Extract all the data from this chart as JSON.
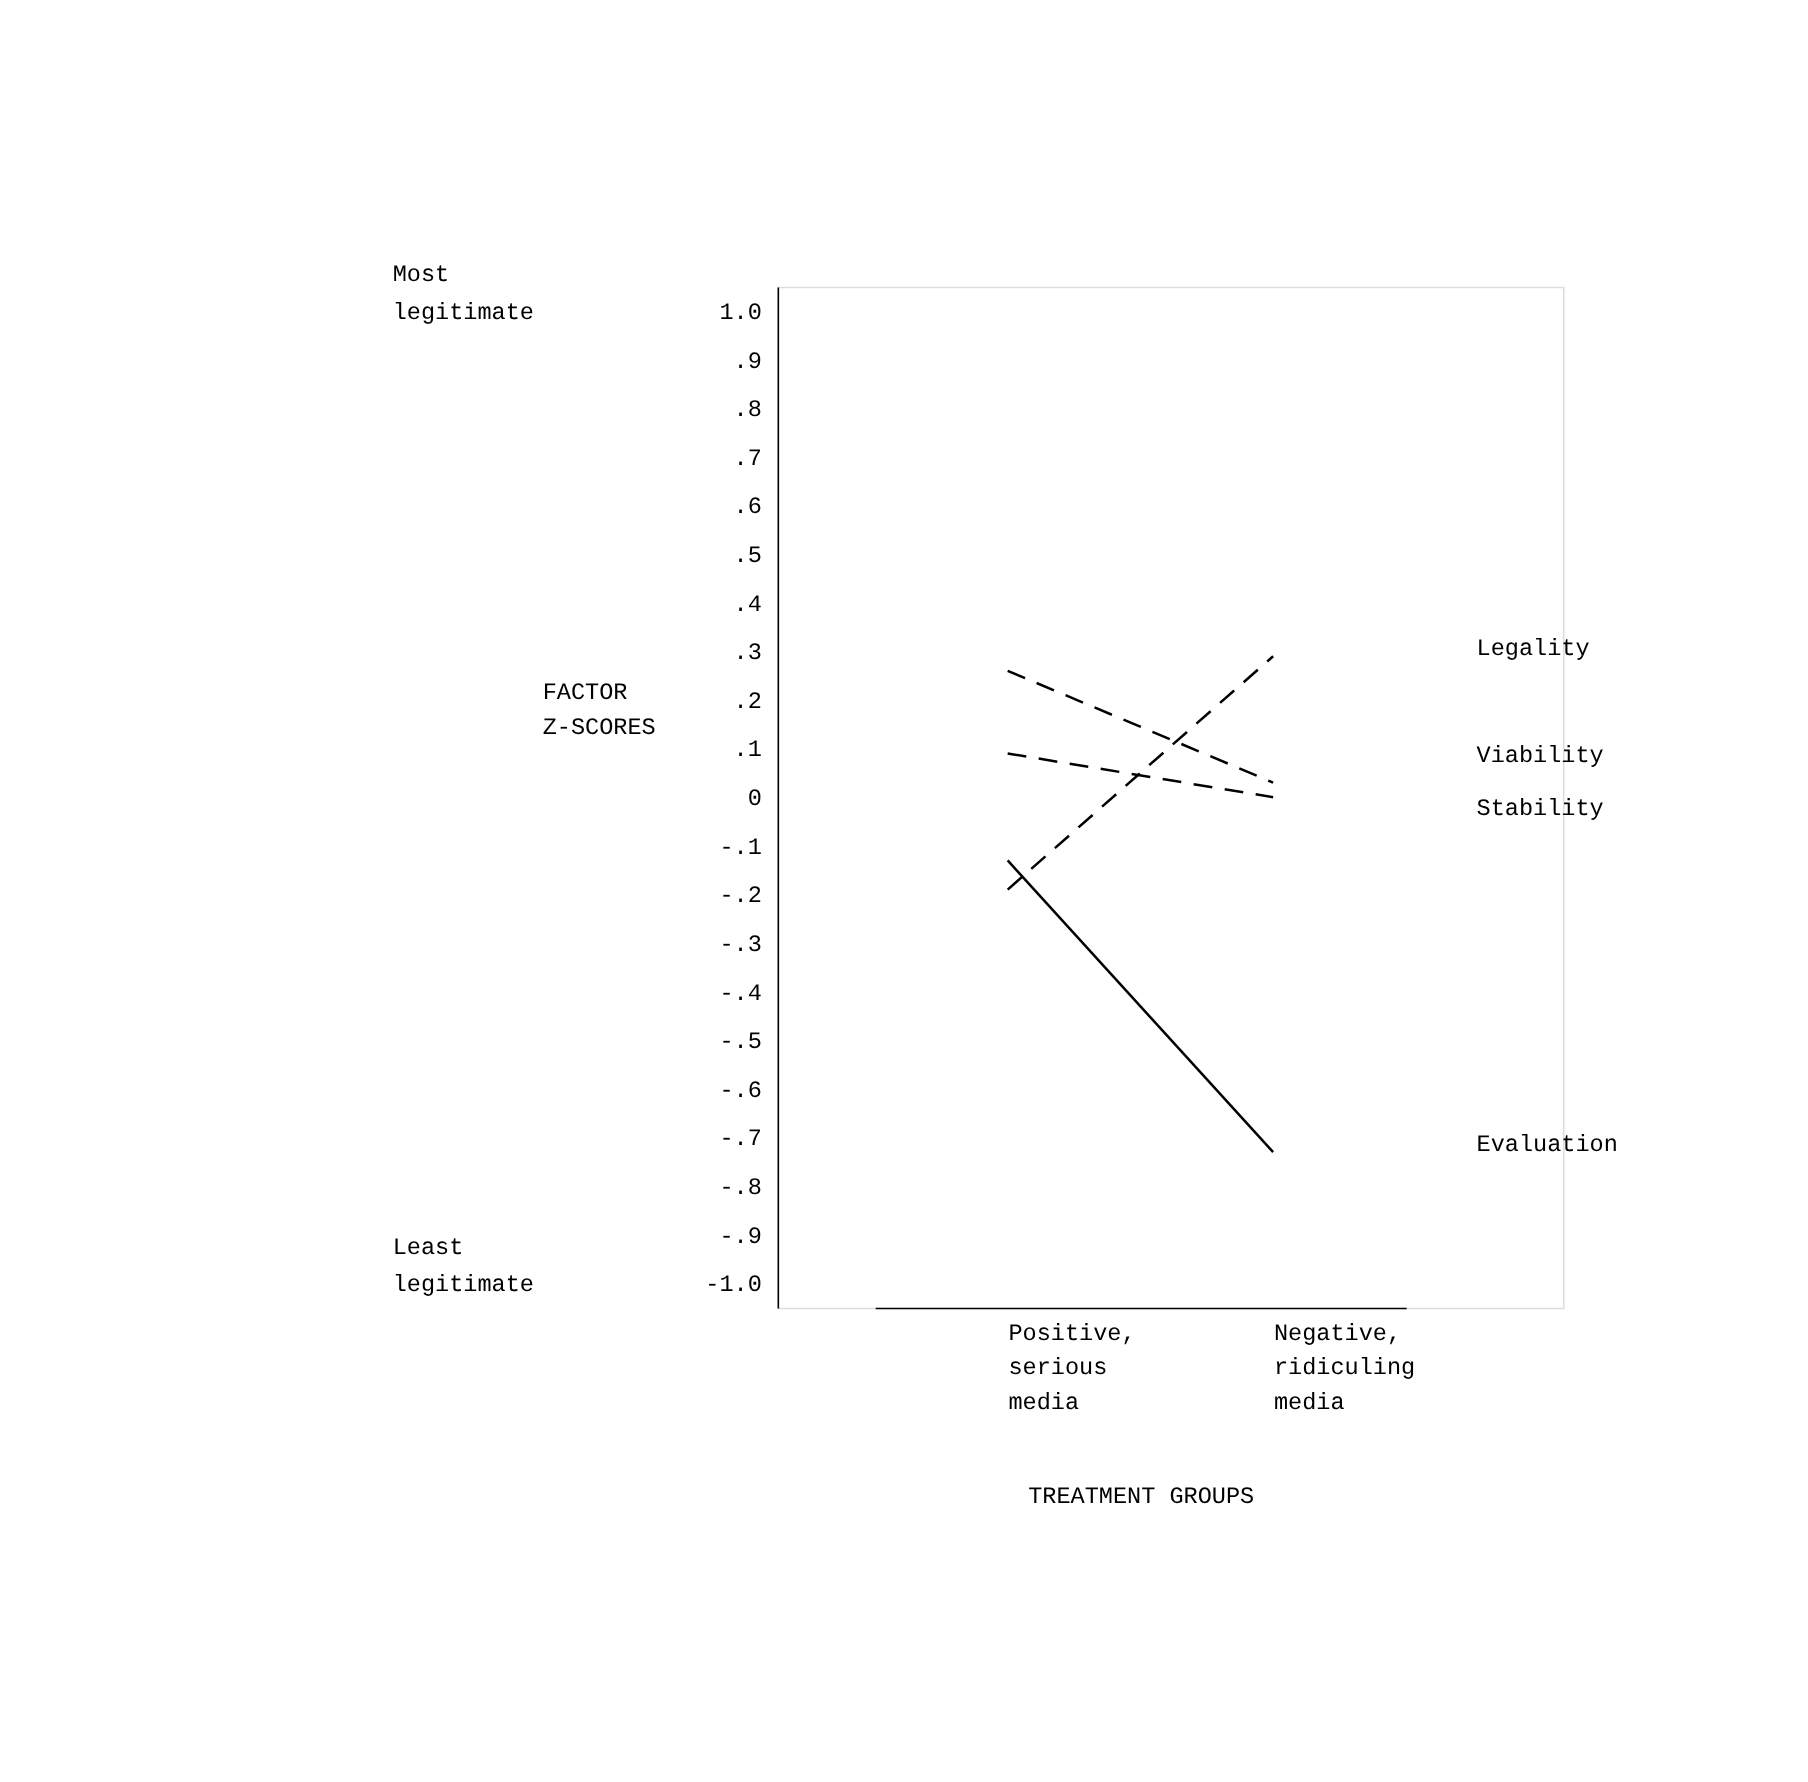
{
  "chart_data": {
    "type": "line",
    "xlabel": "TREATMENT GROUPS",
    "ylabel": "FACTOR Z-SCORES",
    "categories": [
      "Positive,\nserious\nmedia",
      "Negative,\nridiculing\nmedia"
    ],
    "series": [
      {
        "name": "Legality",
        "color": "#000000",
        "line_style": "dashed",
        "values": [
          -0.19,
          0.29
        ]
      },
      {
        "name": "Viability",
        "color": "#000000",
        "line_style": "dashed",
        "values": [
          0.26,
          0.03
        ]
      },
      {
        "name": "Stability",
        "color": "#000000",
        "line_style": "dashed",
        "values": [
          0.09,
          0.0
        ]
      },
      {
        "name": "Evaluation",
        "color": "#000000",
        "line_style": "solid",
        "values": [
          -0.13,
          -0.73
        ]
      }
    ],
    "ylim": [
      -1.05,
      1.05
    ],
    "yticks": [
      {
        "value": 1.0,
        "label": "1.0"
      },
      {
        "value": 0.9,
        "label": ".9"
      },
      {
        "value": 0.8,
        "label": ".8"
      },
      {
        "value": 0.7,
        "label": ".7"
      },
      {
        "value": 0.6,
        "label": ".6"
      },
      {
        "value": 0.5,
        "label": ".5"
      },
      {
        "value": 0.4,
        "label": ".4"
      },
      {
        "value": 0.3,
        "label": ".3"
      },
      {
        "value": 0.2,
        "label": ".2"
      },
      {
        "value": 0.1,
        "label": ".1"
      },
      0,
      {
        "value": -0.1,
        "label": "-.1"
      },
      {
        "value": -0.2,
        "label": "-.2"
      },
      {
        "value": -0.3,
        "label": "-.3"
      },
      {
        "value": -0.4,
        "label": "-.4"
      },
      {
        "value": -0.5,
        "label": "-.5"
      },
      {
        "value": -0.6,
        "label": "-.6"
      },
      {
        "value": -0.7,
        "label": "-.7"
      },
      {
        "value": -0.8,
        "label": "-.8"
      },
      {
        "value": -0.9,
        "label": "-.9"
      },
      {
        "value": -1.0,
        "label": "-1.0"
      }
    ],
    "annotations": [
      "Most legitimate",
      "Least legitimate"
    ],
    "grid": false,
    "legend": false,
    "marker": "none"
  }
}
